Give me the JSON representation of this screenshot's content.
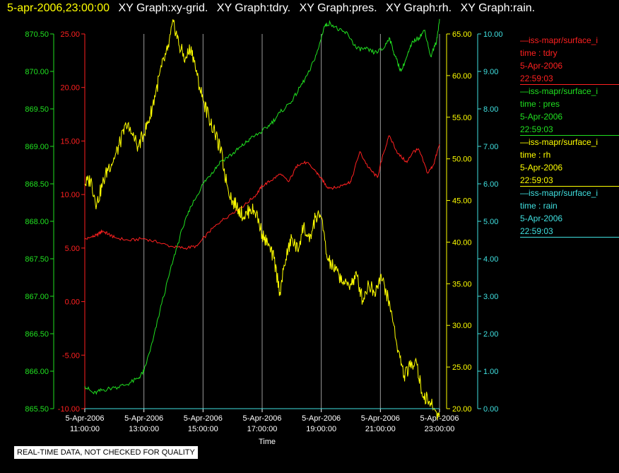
{
  "header": {
    "timestamp": "5-apr-2006,23:00:00",
    "graph_titles": [
      "XY Graph:xy-grid.",
      "XY Graph:tdry.",
      "XY Graph:pres.",
      "XY Graph:rh.",
      "XY Graph:rain."
    ]
  },
  "legend": [
    {
      "name": "—iss-mapr/surface_i",
      "var": "time : tdry",
      "date": "5-Apr-2006",
      "time": "22:59:03",
      "color": "#ff2020"
    },
    {
      "name": "—iss-mapr/surface_i",
      "var": "time : pres",
      "date": "5-Apr-2006",
      "time": "22:59:03",
      "color": "#20e020"
    },
    {
      "name": "—iss-mapr/surface_i",
      "var": "time : rh",
      "date": "5-Apr-2006",
      "time": "22:59:03",
      "color": "#ffff00"
    },
    {
      "name": "—iss-mapr/surface_i",
      "var": "time : rain",
      "date": "5-Apr-2006",
      "time": "22:59:03",
      "color": "#40e0e0"
    }
  ],
  "footer_note": "REAL-TIME DATA, NOT CHECKED FOR QUALITY",
  "chart_data": {
    "type": "line",
    "xlabel": "Time",
    "x_ticks": [
      {
        "date": "5-Apr-2006",
        "time": "11:00:00",
        "hour": 11
      },
      {
        "date": "5-Apr-2006",
        "time": "13:00:00",
        "hour": 13
      },
      {
        "date": "5-Apr-2006",
        "time": "15:00:00",
        "hour": 15
      },
      {
        "date": "5-Apr-2006",
        "time": "17:00:00",
        "hour": 17
      },
      {
        "date": "5-Apr-2006",
        "time": "19:00:00",
        "hour": 19
      },
      {
        "date": "5-Apr-2006",
        "time": "21:00:00",
        "hour": 21
      },
      {
        "date": "5-Apr-2006",
        "time": "23:00:00",
        "hour": 23
      }
    ],
    "xlim": [
      11,
      23
    ],
    "grid": true,
    "axes": {
      "pres": {
        "color": "#20e020",
        "ylim": [
          865.5,
          870.5
        ],
        "ticks": [
          "865.50",
          "866.00",
          "866.50",
          "867.00",
          "867.50",
          "868.00",
          "868.50",
          "869.00",
          "869.50",
          "870.00",
          "870.50"
        ]
      },
      "tdry": {
        "color": "#ff2020",
        "ylim": [
          -10,
          25
        ],
        "ticks": [
          "-10.00",
          "-5.00",
          "0.00",
          "5.00",
          "10.00",
          "15.00",
          "20.00",
          "25.00"
        ]
      },
      "rh": {
        "color": "#ffff00",
        "ylim": [
          20,
          65
        ],
        "ticks": [
          "20.00",
          "25.00",
          "30.00",
          "35.00",
          "40.00",
          "45.00",
          "50.00",
          "55.00",
          "60.00",
          "65.00"
        ]
      },
      "rain": {
        "color": "#40e0e0",
        "ylim": [
          0,
          10
        ],
        "ticks": [
          "0.00",
          "1.00",
          "2.00",
          "3.00",
          "4.00",
          "5.00",
          "6.00",
          "7.00",
          "8.00",
          "9.00",
          "10.00"
        ]
      }
    },
    "series": [
      {
        "name": "tdry",
        "axis": "tdry",
        "color": "#ff2020",
        "x": [
          11,
          11.2,
          11.4,
          11.6,
          11.8,
          12,
          12.5,
          13,
          13.5,
          14,
          14.4,
          14.8,
          15.2,
          15.6,
          16,
          16.4,
          16.8,
          17,
          17.3,
          17.6,
          17.9,
          18.2,
          18.5,
          18.8,
          19,
          19.2,
          19.5,
          19.8,
          20,
          20.3,
          20.6,
          20.9,
          21.1,
          21.3,
          21.6,
          21.9,
          22.1,
          22.3,
          22.6,
          22.8,
          23
        ],
        "values": [
          5.8,
          6,
          6.2,
          6.6,
          6.3,
          6,
          5.7,
          5.9,
          5.5,
          5.1,
          5,
          5.2,
          6.5,
          7.5,
          8.3,
          9,
          10,
          10.8,
          11.3,
          11.9,
          11.2,
          12.8,
          13,
          12.2,
          11.5,
          10.7,
          10.6,
          11,
          11.2,
          14,
          12.5,
          11.6,
          13.8,
          15.5,
          13.8,
          13,
          14,
          14.2,
          12,
          12.8,
          14.7
        ]
      },
      {
        "name": "pres",
        "axis": "pres",
        "color": "#20e020",
        "x": [
          11,
          11.3,
          11.6,
          12,
          12.4,
          12.8,
          13,
          13.3,
          13.6,
          14,
          14.3,
          14.6,
          15,
          15.3,
          15.6,
          16,
          16.3,
          16.6,
          17,
          17.3,
          17.6,
          18,
          18.3,
          18.6,
          18.9,
          19.1,
          19.3,
          19.6,
          19.9,
          20.2,
          20.5,
          20.8,
          21.1,
          21.3,
          21.5,
          21.7,
          21.9,
          22.1,
          22.3,
          22.5,
          22.7,
          22.9,
          23
        ],
        "values": [
          865.8,
          865.7,
          865.75,
          865.78,
          865.82,
          865.9,
          866.0,
          866.4,
          866.9,
          867.5,
          867.9,
          868.2,
          868.5,
          868.65,
          868.8,
          868.9,
          869.0,
          869.1,
          869.2,
          869.3,
          869.45,
          869.6,
          869.8,
          870.0,
          870.3,
          870.6,
          870.65,
          870.55,
          870.5,
          870.3,
          870.3,
          870.25,
          870.3,
          870.45,
          870.2,
          870.0,
          870.2,
          870.4,
          870.45,
          870.55,
          870.2,
          870.4,
          870.7
        ]
      },
      {
        "name": "rh",
        "axis": "rh",
        "color": "#ffff00",
        "x": [
          11,
          11.2,
          11.4,
          11.6,
          11.8,
          12,
          12.2,
          12.4,
          12.6,
          12.8,
          13,
          13.2,
          13.4,
          13.6,
          13.8,
          14,
          14.2,
          14.4,
          14.6,
          14.8,
          15,
          15.2,
          15.4,
          15.6,
          15.8,
          16,
          16.2,
          16.4,
          16.6,
          16.8,
          17,
          17.2,
          17.4,
          17.6,
          17.8,
          18,
          18.2,
          18.4,
          18.6,
          18.8,
          19,
          19.2,
          19.4,
          19.6,
          19.8,
          20,
          20.2,
          20.4,
          20.6,
          20.8,
          21,
          21.2,
          21.4,
          21.6,
          21.8,
          22,
          22.2,
          22.4,
          22.6,
          22.8,
          23
        ],
        "values": [
          47,
          47.5,
          44.5,
          47,
          49,
          50,
          52,
          54,
          53,
          51.5,
          53,
          55,
          58,
          61,
          63,
          66.5,
          63.5,
          62,
          63.5,
          60,
          57,
          55,
          53,
          51,
          47,
          45,
          44,
          43,
          44,
          43.5,
          41,
          39.5,
          38,
          34,
          38,
          40.5,
          39,
          42,
          40,
          43,
          43,
          38,
          37,
          36,
          35,
          35,
          36,
          33,
          35,
          34,
          36,
          34,
          31,
          27,
          24,
          25,
          26,
          22,
          21,
          20,
          19
        ]
      },
      {
        "name": "rain",
        "axis": "rain",
        "color": "#40e0e0",
        "x": [
          11,
          23
        ],
        "values": [
          0,
          0
        ]
      }
    ]
  }
}
